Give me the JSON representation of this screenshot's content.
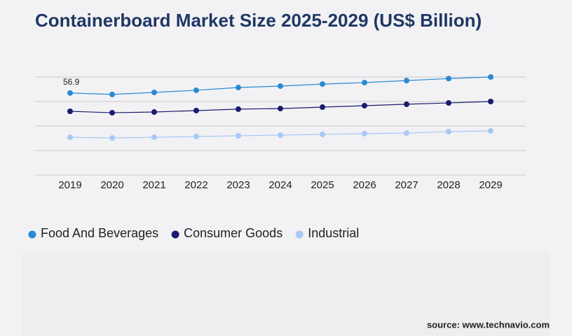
{
  "chart_data": {
    "type": "line",
    "title": "Containerboard Market Size 2025-2029 (US$ Billion)",
    "categories": [
      "2019",
      "2020",
      "2021",
      "2022",
      "2023",
      "2024",
      "2025",
      "2026",
      "2027",
      "2028",
      "2029"
    ],
    "series": [
      {
        "name": "Food And Beverages",
        "color": "#2a8ad4",
        "values": [
          56.9,
          55.9,
          57.3,
          58.8,
          60.7,
          61.7,
          63.1,
          64.1,
          65.5,
          66.9,
          68.0
        ]
      },
      {
        "name": "Consumer Goods",
        "color": "#1a1a6e",
        "values": [
          44.2,
          43.2,
          43.7,
          44.7,
          45.7,
          46.1,
          47.1,
          48.1,
          49.1,
          50.0,
          51.0
        ]
      },
      {
        "name": "Industrial",
        "color": "#a8c8f5",
        "values": [
          26.2,
          25.7,
          26.2,
          26.7,
          27.2,
          27.7,
          28.2,
          28.7,
          29.1,
          30.1,
          30.6
        ]
      }
    ],
    "ylim": [
      0,
      68
    ],
    "grid": true,
    "source": "source: www.technavio.com"
  }
}
